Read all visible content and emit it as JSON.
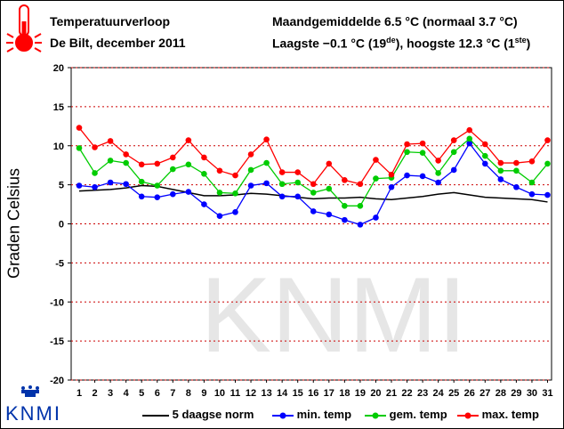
{
  "header": {
    "title_line1": "Temperatuurverloop",
    "title_line2": "De Bilt, december 2011",
    "right_line1": "Maandgemiddelde 6.5 °C (normaal 3.7 °C)",
    "right_line2_prefix": "Laagste −0.1 °C (19",
    "right_line2_sup1": "de",
    "right_line2_mid": "), hoogste 12.3 °C (1",
    "right_line2_sup2": "ste",
    "right_line2_suffix": ")"
  },
  "brand": {
    "logo_text": "KNMI"
  },
  "colors": {
    "min": "#0000ff",
    "gem": "#00cc00",
    "max": "#ff0000",
    "norm": "#000000",
    "grid": "#cc0000",
    "watermark": "#e6e6e6"
  },
  "chart_data": {
    "type": "line",
    "ylabel": "Graden Celsius",
    "ylim": [
      -20,
      20
    ],
    "yticks": [
      20,
      15,
      10,
      5,
      0,
      -5,
      -10,
      -15,
      -20
    ],
    "x": [
      1,
      2,
      3,
      4,
      5,
      6,
      7,
      8,
      9,
      10,
      11,
      12,
      13,
      14,
      15,
      16,
      17,
      18,
      19,
      20,
      21,
      22,
      23,
      24,
      25,
      26,
      27,
      28,
      29,
      30,
      31
    ],
    "grid": true,
    "legend_position": "bottom",
    "series": [
      {
        "name": "5 daagse norm",
        "style": "line",
        "color": "#000000",
        "values": [
          4.2,
          4.3,
          4.4,
          4.6,
          4.9,
          4.8,
          4.4,
          4.0,
          3.6,
          3.6,
          3.7,
          3.9,
          3.8,
          3.6,
          3.4,
          3.2,
          3.3,
          3.3,
          3.4,
          3.2,
          3.1,
          3.3,
          3.5,
          3.8,
          4.0,
          3.7,
          3.4,
          3.3,
          3.2,
          3.1,
          2.8
        ]
      },
      {
        "name": "min. temp",
        "style": "line+marker",
        "color": "#0000ff",
        "values": [
          4.9,
          4.7,
          5.3,
          5.1,
          3.5,
          3.4,
          3.8,
          4.1,
          2.5,
          1.0,
          1.5,
          4.9,
          5.2,
          3.5,
          3.5,
          1.6,
          1.2,
          0.5,
          -0.1,
          0.8,
          4.7,
          6.2,
          6.1,
          5.3,
          6.9,
          10.3,
          7.7,
          5.7,
          4.7,
          3.8,
          3.7
        ]
      },
      {
        "name": "gem. temp",
        "style": "line+marker",
        "color": "#00cc00",
        "values": [
          9.7,
          6.5,
          8.1,
          7.8,
          5.4,
          4.9,
          7.0,
          7.6,
          6.4,
          4.0,
          3.9,
          6.9,
          7.8,
          5.1,
          5.3,
          4.0,
          4.5,
          2.3,
          2.3,
          5.8,
          5.9,
          9.2,
          9.1,
          6.5,
          9.2,
          10.9,
          8.7,
          6.8,
          6.8,
          5.3,
          7.7
        ]
      },
      {
        "name": "max. temp",
        "style": "line+marker",
        "color": "#ff0000",
        "values": [
          12.3,
          9.8,
          10.6,
          8.9,
          7.6,
          7.7,
          8.5,
          10.7,
          8.5,
          6.8,
          6.2,
          8.9,
          10.8,
          6.6,
          6.6,
          5.1,
          7.7,
          5.6,
          5.1,
          8.2,
          6.3,
          10.2,
          10.3,
          8.1,
          10.7,
          12.0,
          10.2,
          7.8,
          7.8,
          8.0,
          10.7
        ]
      }
    ]
  }
}
